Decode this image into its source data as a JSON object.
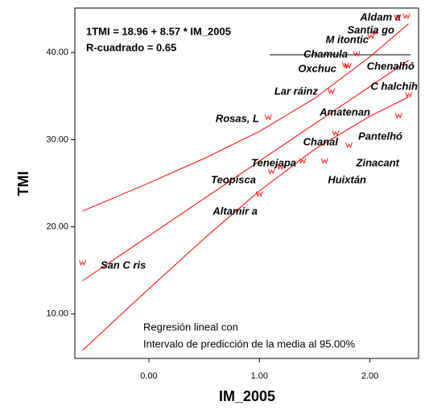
{
  "chart_data": {
    "type": "scatter",
    "xlabel": "IM_2005",
    "ylabel": "TMI",
    "annotations": [
      "1TMI = 18.96 + 8.57 * IM_2005",
      "R-cuadrado = 0.65"
    ],
    "legend_text": [
      "Regresión lineal con",
      "Intervalo de predicción de la media al 95.00%"
    ],
    "color": "#ff0000",
    "xlim": [
      -0.67,
      2.44
    ],
    "ylim": [
      4.9,
      45.1
    ],
    "xticks": [
      {
        "value": 0,
        "label": "0.00"
      },
      {
        "value": 1,
        "label": "1.00"
      },
      {
        "value": 2,
        "label": "2.00"
      }
    ],
    "yticks": [
      {
        "value": 10,
        "label": "10.00"
      },
      {
        "value": 20,
        "label": "20.00"
      },
      {
        "value": 30,
        "label": "30.00"
      },
      {
        "value": 40,
        "label": "40.00"
      }
    ],
    "series": [
      {
        "x": [
          -0.6,
          1.0,
          1.11,
          1.19,
          1.39,
          1.59,
          1.69,
          1.81,
          1.08,
          1.65,
          2.26,
          2.35,
          1.78,
          1.8,
          1.88,
          2.01,
          2.04,
          2.33,
          2.25
        ],
        "values": [
          15.9,
          23.8,
          26.4,
          26.9,
          27.6,
          27.6,
          30.8,
          29.4,
          32.6,
          35.6,
          32.8,
          35.2,
          38.6,
          38.5,
          39.9,
          41.9,
          42.4,
          44.2,
          44.1
        ],
        "labels": [
          "San C ris",
          "Altamir a",
          "Teopisca",
          "Tenejapa",
          "Huixtán",
          "Zinacant",
          "Chanal",
          "Pantelhó",
          "Rosas, L",
          "Lar ráinz",
          "Amatenan",
          "C halchih",
          "Chenalhó",
          "Oxchuc",
          "Chamula",
          "M itontic",
          "Santia go",
          "Aldam a",
          null
        ]
      }
    ],
    "lines": [
      {
        "x": [
          -0.6,
          2.35
        ],
        "values": [
          13.82,
          39.1
        ]
      },
      {
        "x": [
          -0.6,
          -0.3,
          0,
          0.5,
          1,
          1.5,
          2,
          2.35
        ],
        "values": [
          21.82,
          23.41,
          25.03,
          27.84,
          30.94,
          34.74,
          39.51,
          43.3
        ]
      },
      {
        "x": [
          -0.6,
          -0.3,
          0,
          0.5,
          1,
          1.5,
          2,
          2.35
        ],
        "values": [
          5.82,
          9.37,
          12.89,
          18.66,
          24.12,
          28.9,
          32.69,
          34.9
        ]
      }
    ]
  }
}
